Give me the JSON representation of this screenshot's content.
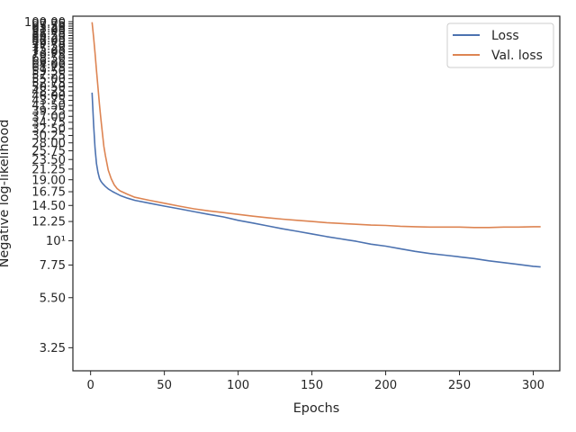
{
  "chart_data": {
    "type": "line",
    "xlabel": "Epochs",
    "ylabel": "Negative log-likelihood",
    "yscale": "log",
    "xlim": [
      -12,
      318
    ],
    "ylim": [
      2.55,
      106
    ],
    "xticks": [
      "0",
      "50",
      "100",
      "150",
      "200",
      "250",
      "300"
    ],
    "xtick_values": [
      0,
      50,
      100,
      150,
      200,
      250,
      300
    ],
    "yticks": [
      {
        "v": 3.25,
        "label": "3.25"
      },
      {
        "v": 5.5,
        "label": "5.50"
      },
      {
        "v": 7.75,
        "label": "7.75"
      },
      {
        "v": 10,
        "label": "10¹"
      },
      {
        "v": 12.25,
        "label": "12.25"
      },
      {
        "v": 14.5,
        "label": "14.50"
      },
      {
        "v": 16.75,
        "label": "16.75"
      },
      {
        "v": 19.0,
        "label": "19.00"
      },
      {
        "v": 21.25,
        "label": "21.25"
      },
      {
        "v": 23.5,
        "label": "23.50"
      },
      {
        "v": 25.75,
        "label": "25.75"
      },
      {
        "v": 28.0,
        "label": "28.00"
      },
      {
        "v": 30.25,
        "label": "30.25"
      },
      {
        "v": 32.5,
        "label": "32.50"
      },
      {
        "v": 34.75,
        "label": "34.75"
      },
      {
        "v": 37.0,
        "label": "37.00"
      },
      {
        "v": 39.25,
        "label": "39.25"
      },
      {
        "v": 41.5,
        "label": "41.50"
      },
      {
        "v": 43.75,
        "label": "43.75"
      },
      {
        "v": 46.0,
        "label": "46.00"
      },
      {
        "v": 48.25,
        "label": "48.25"
      },
      {
        "v": 50.5,
        "label": "50.50"
      },
      {
        "v": 52.75,
        "label": "52.75"
      },
      {
        "v": 55.0,
        "label": "55.00"
      },
      {
        "v": 57.25,
        "label": "57.25"
      },
      {
        "v": 59.5,
        "label": "59.50"
      },
      {
        "v": 61.75,
        "label": "61.75"
      },
      {
        "v": 64.0,
        "label": "64.00"
      },
      {
        "v": 66.25,
        "label": "66.25"
      },
      {
        "v": 68.5,
        "label": "68.50"
      },
      {
        "v": 70.75,
        "label": "70.75"
      },
      {
        "v": 73.0,
        "label": "73.00"
      },
      {
        "v": 75.25,
        "label": "75.25"
      },
      {
        "v": 77.5,
        "label": "77.50"
      },
      {
        "v": 79.75,
        "label": "79.75"
      },
      {
        "v": 82.0,
        "label": "82.00"
      },
      {
        "v": 84.25,
        "label": "84.25"
      },
      {
        "v": 86.5,
        "label": "86.50"
      },
      {
        "v": 88.75,
        "label": "88.75"
      },
      {
        "v": 91.0,
        "label": "91.00"
      },
      {
        "v": 93.25,
        "label": "93.25"
      },
      {
        "v": 95.5,
        "label": "95.50"
      },
      {
        "v": 97.75,
        "label": "97.75"
      },
      {
        "v": 100.0,
        "label": "100.00"
      }
    ],
    "legend": {
      "position": "upper right"
    },
    "grid": false,
    "series": [
      {
        "name": "Loss",
        "color": "#4c72b0",
        "x": [
          1,
          2,
          3,
          4,
          5,
          6,
          7,
          8,
          10,
          12,
          15,
          20,
          25,
          30,
          40,
          50,
          60,
          70,
          80,
          90,
          100,
          110,
          120,
          130,
          140,
          150,
          160,
          170,
          180,
          190,
          200,
          210,
          220,
          230,
          240,
          250,
          260,
          270,
          280,
          290,
          300,
          305
        ],
        "y": [
          47.5,
          34.0,
          26.5,
          22.5,
          20.5,
          19.3,
          18.7,
          18.3,
          17.7,
          17.25,
          16.75,
          16.1,
          15.65,
          15.3,
          14.85,
          14.4,
          14.0,
          13.6,
          13.2,
          12.85,
          12.4,
          12.05,
          11.7,
          11.35,
          11.05,
          10.75,
          10.45,
          10.2,
          9.95,
          9.65,
          9.45,
          9.2,
          8.95,
          8.75,
          8.6,
          8.45,
          8.3,
          8.1,
          7.95,
          7.8,
          7.65,
          7.6
        ]
      },
      {
        "name": "Val. loss",
        "color": "#dd8452",
        "x": [
          1,
          2,
          3,
          4,
          5,
          6,
          7,
          8,
          9,
          10,
          12,
          14,
          16,
          18,
          20,
          25,
          30,
          40,
          50,
          60,
          70,
          80,
          90,
          100,
          110,
          120,
          130,
          140,
          150,
          160,
          170,
          180,
          190,
          200,
          210,
          220,
          230,
          240,
          250,
          260,
          270,
          280,
          290,
          300,
          305
        ],
        "y": [
          99.5,
          85.0,
          72.0,
          60.0,
          50.0,
          42.0,
          36.0,
          31.0,
          27.0,
          24.5,
          21.0,
          19.2,
          18.0,
          17.3,
          16.9,
          16.3,
          15.8,
          15.3,
          14.85,
          14.4,
          14.0,
          13.7,
          13.45,
          13.2,
          12.95,
          12.75,
          12.55,
          12.4,
          12.25,
          12.1,
          12.0,
          11.9,
          11.8,
          11.75,
          11.65,
          11.6,
          11.55,
          11.55,
          11.55,
          11.5,
          11.5,
          11.55,
          11.55,
          11.6,
          11.6
        ]
      }
    ]
  }
}
